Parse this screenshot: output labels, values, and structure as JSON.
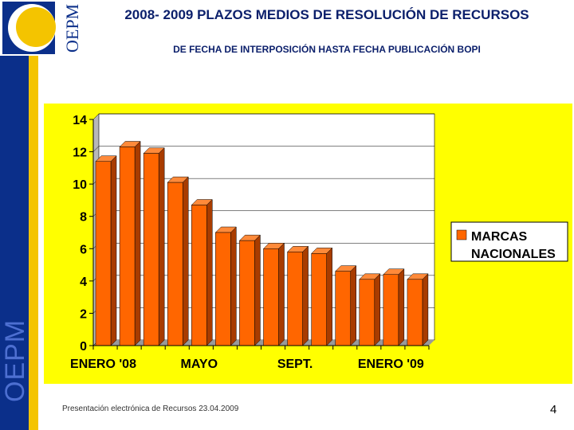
{
  "header": {
    "title": "2008- 2009 PLAZOS MEDIOS DE RESOLUCIÓN DE RECURSOS",
    "subtitle": "DE FECHA DE INTERPOSICIÓN HASTA FECHA PUBLICACIÓN BOPI"
  },
  "logo": {
    "text": "OEPM"
  },
  "sidebar": {
    "text": "OEPM"
  },
  "colors": {
    "navy": "#0b2f8a",
    "gold": "#f4c400",
    "chart_bg": "#ffff00",
    "bar": "#ff6600",
    "bar_top": "#ff8a3a",
    "bar_side": "#a83c00"
  },
  "chart_data": {
    "type": "bar",
    "title": "",
    "xlabel": "",
    "ylabel": "",
    "ylim": [
      0,
      14
    ],
    "yticks": [
      0,
      2,
      4,
      6,
      8,
      10,
      12,
      14
    ],
    "category_labels": [
      {
        "label": "ENERO '08",
        "index": 0
      },
      {
        "label": "MAYO",
        "index": 4
      },
      {
        "label": "SEPT.",
        "index": 8
      },
      {
        "label": "ENERO '09",
        "index": 12
      }
    ],
    "series": [
      {
        "name": "MARCAS NACIONALES",
        "values": [
          11.4,
          12.3,
          11.9,
          10.1,
          8.7,
          7.0,
          6.5,
          6.0,
          5.8,
          5.7,
          4.6,
          4.1,
          4.4,
          4.1
        ]
      }
    ],
    "legend": "right",
    "grid": true
  },
  "footer": {
    "text": "Presentación electrónica de Recursos 23.04.2009",
    "page": "4"
  }
}
